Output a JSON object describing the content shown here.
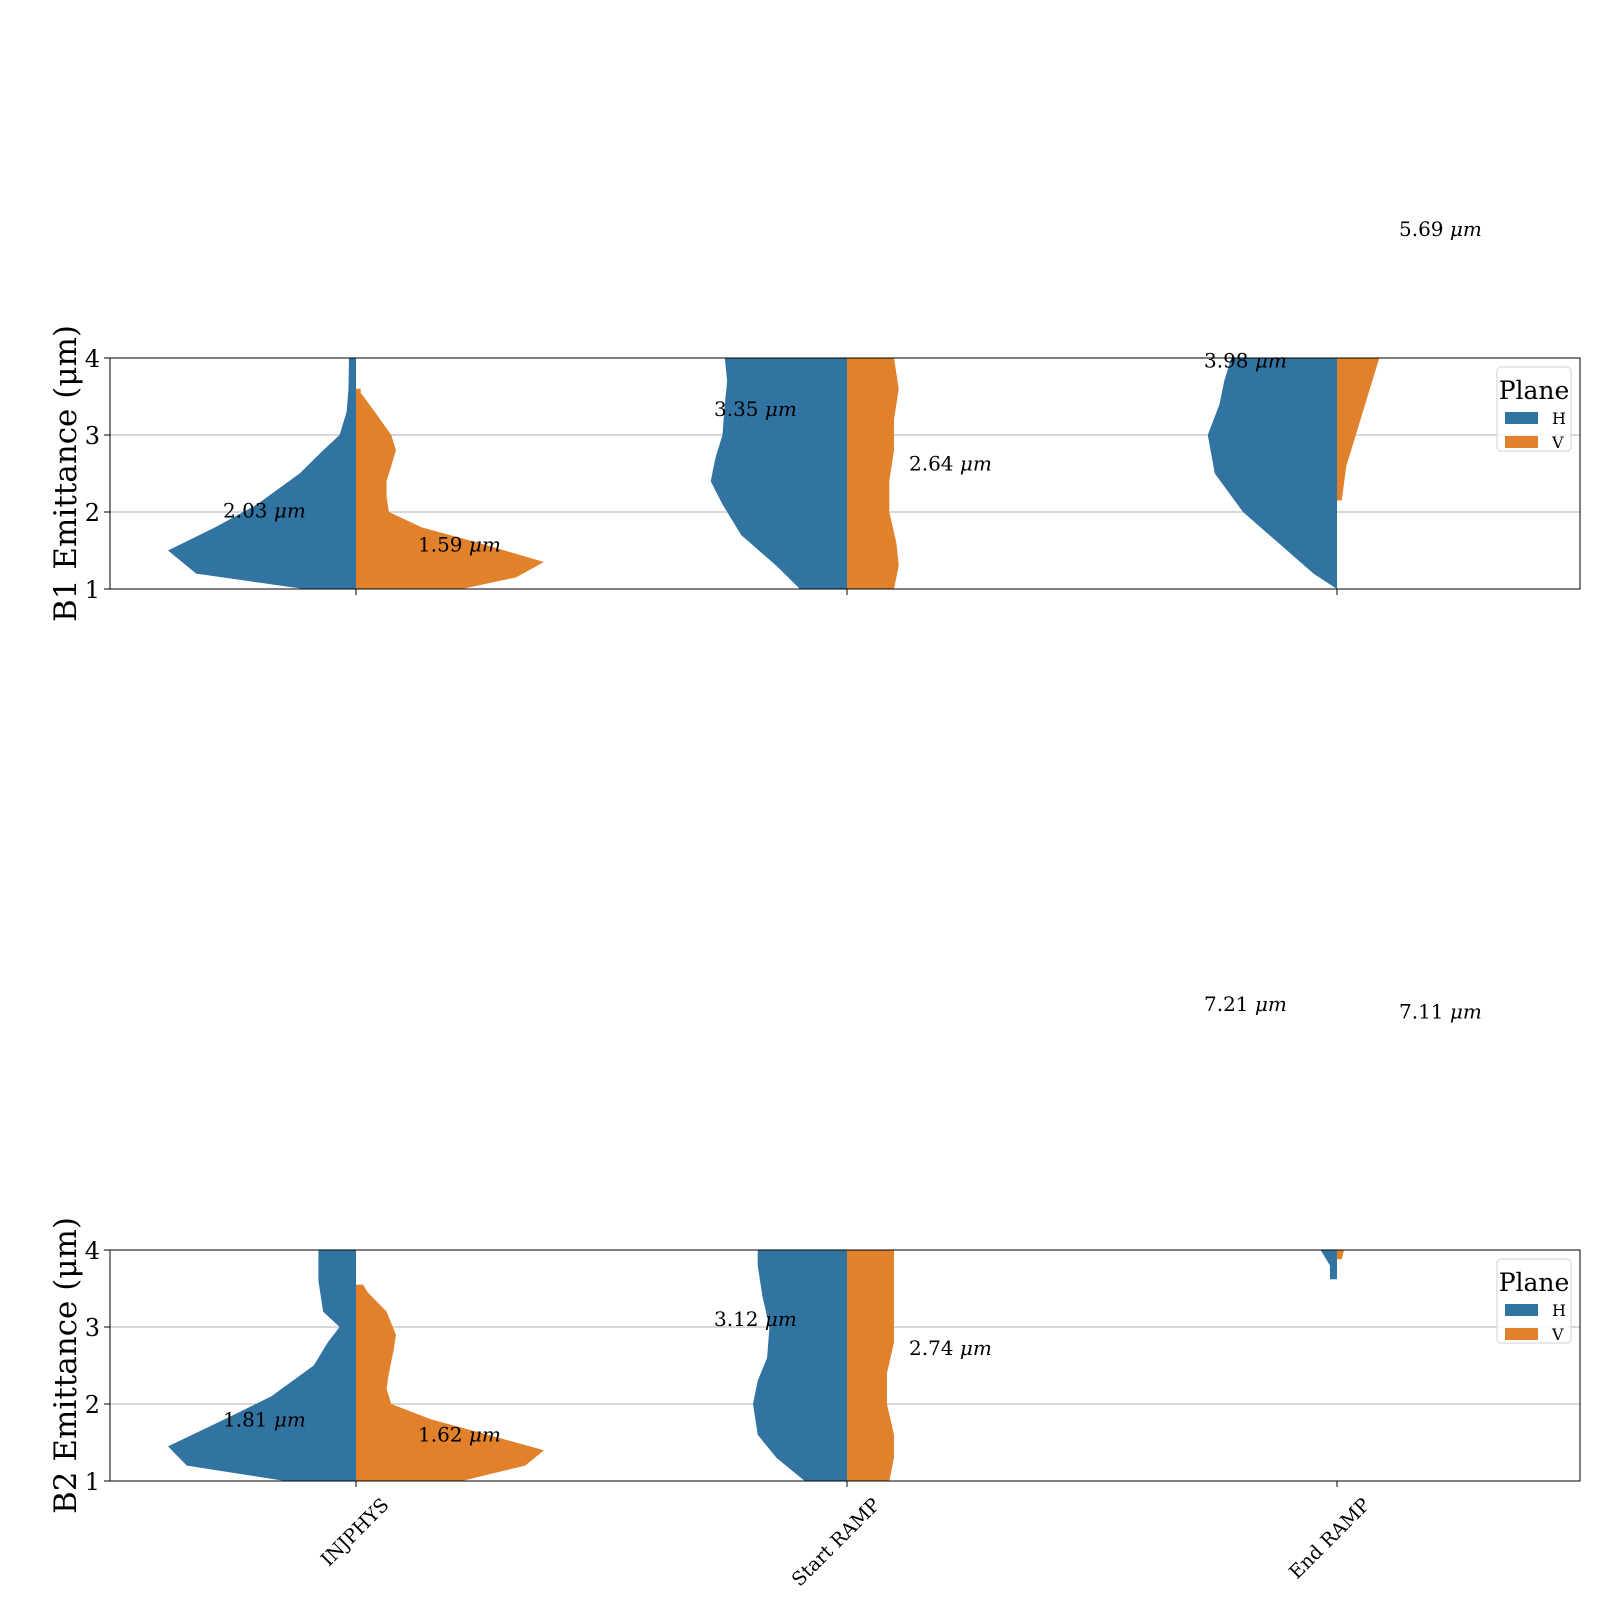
{
  "colors": {
    "H": "#3274a1",
    "V": "#e1812c",
    "grid": "#b0b0b0",
    "axis": "#000000"
  },
  "chart_data": {
    "type": "violin",
    "split": true,
    "categories": [
      "INJPHYS",
      "Start RAMP",
      "End RAMP"
    ],
    "legend": {
      "title": "Plane",
      "entries": [
        "H",
        "V"
      ],
      "position": "top-right"
    },
    "grid": "horizontal",
    "panels": [
      {
        "ylabel": "B1 Emittance (μm)",
        "ylim": [
          1,
          4
        ],
        "yticks": [
          1,
          2,
          3,
          4
        ],
        "annotations": [
          {
            "category": "INJPHYS",
            "plane": "H",
            "value": 2.03,
            "text": "2.03 μm"
          },
          {
            "category": "INJPHYS",
            "plane": "V",
            "value": 1.59,
            "text": "1.59 μm"
          },
          {
            "category": "Start RAMP",
            "plane": "H",
            "value": 3.35,
            "text": "3.35 μm"
          },
          {
            "category": "Start RAMP",
            "plane": "V",
            "value": 2.64,
            "text": "2.64 μm"
          },
          {
            "category": "End RAMP",
            "plane": "H",
            "value": 3.98,
            "text": "3.98 μm"
          },
          {
            "category": "End RAMP",
            "plane": "V",
            "value": 5.69,
            "text": "5.69 μm"
          }
        ],
        "violins": [
          {
            "category": "INJPHYS",
            "plane": "H",
            "profile": [
              [
                1.0,
                0.22
              ],
              [
                1.2,
                0.68
              ],
              [
                1.5,
                0.8
              ],
              [
                1.8,
                0.6
              ],
              [
                2.1,
                0.42
              ],
              [
                2.5,
                0.24
              ],
              [
                2.8,
                0.14
              ],
              [
                3.0,
                0.07
              ],
              [
                3.3,
                0.04
              ],
              [
                3.6,
                0.032
              ],
              [
                4.0,
                0.03
              ]
            ]
          },
          {
            "category": "INJPHYS",
            "plane": "V",
            "profile": [
              [
                1.0,
                0.45
              ],
              [
                1.15,
                0.68
              ],
              [
                1.35,
                0.8
              ],
              [
                1.6,
                0.52
              ],
              [
                1.8,
                0.28
              ],
              [
                2.0,
                0.14
              ],
              [
                2.2,
                0.13
              ],
              [
                2.4,
                0.13
              ],
              [
                2.6,
                0.15
              ],
              [
                2.8,
                0.17
              ],
              [
                3.0,
                0.15
              ],
              [
                3.3,
                0.08
              ],
              [
                3.55,
                0.02
              ],
              [
                3.6,
                0.02
              ]
            ]
          },
          {
            "category": "Start RAMP",
            "plane": "H",
            "profile": [
              [
                1.0,
                0.2
              ],
              [
                1.3,
                0.3
              ],
              [
                1.7,
                0.45
              ],
              [
                2.1,
                0.53
              ],
              [
                2.4,
                0.58
              ],
              [
                2.7,
                0.56
              ],
              [
                3.0,
                0.53
              ],
              [
                3.4,
                0.52
              ],
              [
                3.7,
                0.51
              ],
              [
                4.0,
                0.52
              ]
            ]
          },
          {
            "category": "Start RAMP",
            "plane": "V",
            "profile": [
              [
                1.0,
                0.2
              ],
              [
                1.3,
                0.22
              ],
              [
                1.6,
                0.21
              ],
              [
                2.0,
                0.18
              ],
              [
                2.4,
                0.18
              ],
              [
                2.8,
                0.2
              ],
              [
                3.2,
                0.2
              ],
              [
                3.6,
                0.22
              ],
              [
                4.0,
                0.2
              ]
            ]
          },
          {
            "category": "End RAMP",
            "plane": "H",
            "profile": [
              [
                1.0,
                0.0
              ],
              [
                1.2,
                0.1
              ],
              [
                1.6,
                0.25
              ],
              [
                2.0,
                0.4
              ],
              [
                2.5,
                0.52
              ],
              [
                3.0,
                0.55
              ],
              [
                3.4,
                0.5
              ],
              [
                3.7,
                0.48
              ],
              [
                4.0,
                0.45
              ]
            ]
          },
          {
            "category": "End RAMP",
            "plane": "V",
            "profile": [
              [
                2.15,
                0.02
              ],
              [
                2.6,
                0.04
              ],
              [
                3.0,
                0.08
              ],
              [
                3.5,
                0.13
              ],
              [
                4.0,
                0.18
              ]
            ]
          }
        ]
      },
      {
        "ylabel": "B2 Emittance (μm)",
        "ylim": [
          1,
          4
        ],
        "yticks": [
          1,
          2,
          3,
          4
        ],
        "annotations": [
          {
            "category": "INJPHYS",
            "plane": "H",
            "value": 1.81,
            "text": "1.81 μm"
          },
          {
            "category": "INJPHYS",
            "plane": "V",
            "value": 1.62,
            "text": "1.62 μm"
          },
          {
            "category": "Start RAMP",
            "plane": "H",
            "value": 3.12,
            "text": "3.12 μm"
          },
          {
            "category": "Start RAMP",
            "plane": "V",
            "value": 2.74,
            "text": "2.74 μm"
          },
          {
            "category": "End RAMP",
            "plane": "H",
            "value": 7.21,
            "text": "7.21 μm"
          },
          {
            "category": "End RAMP",
            "plane": "V",
            "value": 7.11,
            "text": "7.11 μm"
          }
        ],
        "violins": [
          {
            "category": "INJPHYS",
            "plane": "H",
            "profile": [
              [
                1.0,
                0.3
              ],
              [
                1.2,
                0.72
              ],
              [
                1.45,
                0.8
              ],
              [
                1.8,
                0.56
              ],
              [
                2.1,
                0.36
              ],
              [
                2.5,
                0.18
              ],
              [
                2.8,
                0.12
              ],
              [
                3.0,
                0.07
              ],
              [
                3.2,
                0.14
              ],
              [
                3.6,
                0.16
              ],
              [
                4.0,
                0.16
              ]
            ]
          },
          {
            "category": "INJPHYS",
            "plane": "V",
            "profile": [
              [
                1.0,
                0.45
              ],
              [
                1.2,
                0.72
              ],
              [
                1.4,
                0.8
              ],
              [
                1.6,
                0.56
              ],
              [
                1.8,
                0.32
              ],
              [
                2.0,
                0.15
              ],
              [
                2.2,
                0.13
              ],
              [
                2.4,
                0.14
              ],
              [
                2.7,
                0.16
              ],
              [
                2.9,
                0.17
              ],
              [
                3.2,
                0.13
              ],
              [
                3.45,
                0.05
              ],
              [
                3.55,
                0.03
              ]
            ]
          },
          {
            "category": "Start RAMP",
            "plane": "H",
            "profile": [
              [
                1.0,
                0.18
              ],
              [
                1.3,
                0.3
              ],
              [
                1.6,
                0.38
              ],
              [
                2.0,
                0.4
              ],
              [
                2.3,
                0.38
              ],
              [
                2.6,
                0.34
              ],
              [
                3.0,
                0.33
              ],
              [
                3.4,
                0.36
              ],
              [
                3.8,
                0.38
              ],
              [
                4.0,
                0.38
              ]
            ]
          },
          {
            "category": "Start RAMP",
            "plane": "V",
            "profile": [
              [
                1.0,
                0.18
              ],
              [
                1.3,
                0.2
              ],
              [
                1.6,
                0.2
              ],
              [
                2.0,
                0.17
              ],
              [
                2.4,
                0.17
              ],
              [
                2.8,
                0.2
              ],
              [
                3.2,
                0.2
              ],
              [
                3.6,
                0.2
              ],
              [
                4.0,
                0.2
              ]
            ]
          },
          {
            "category": "End RAMP",
            "plane": "H",
            "profile": [
              [
                3.62,
                0.03
              ],
              [
                3.8,
                0.03
              ],
              [
                3.9,
                0.05
              ],
              [
                4.0,
                0.07
              ]
            ]
          },
          {
            "category": "End RAMP",
            "plane": "V",
            "profile": [
              [
                3.88,
                0.02
              ],
              [
                4.0,
                0.03
              ]
            ]
          }
        ]
      }
    ]
  }
}
